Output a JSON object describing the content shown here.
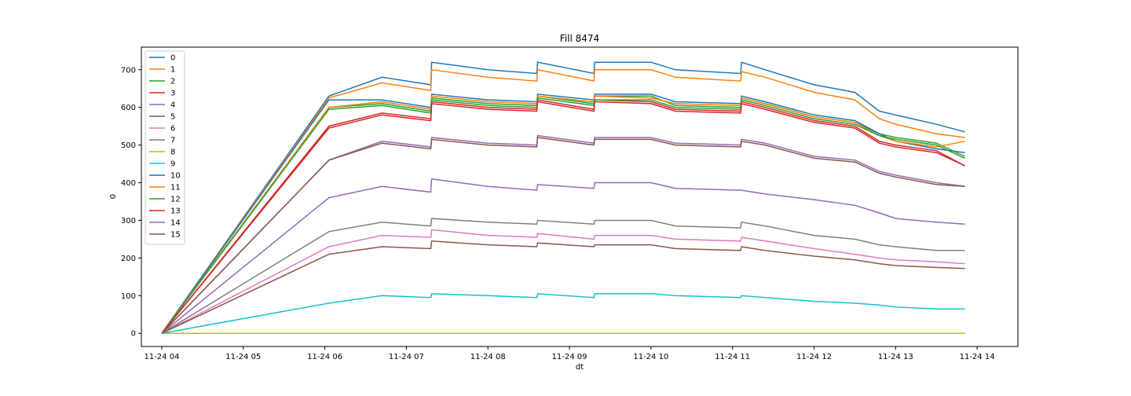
{
  "chart_data": {
    "type": "line",
    "title": "Fill 8474",
    "xlabel": "dt",
    "ylabel": "0",
    "x_ticks": [
      "11-24 04",
      "11-24 05",
      "11-24 06",
      "11-24 07",
      "11-24 08",
      "11-24 09",
      "11-24 10",
      "11-24 11",
      "11-24 12",
      "11-24 13",
      "11-24 14"
    ],
    "y_ticks": [
      "0",
      "100",
      "200",
      "300",
      "400",
      "500",
      "600",
      "700"
    ],
    "xlim_hours": [
      3.75,
      14.5
    ],
    "ylim": [
      -35,
      760
    ],
    "grid": false,
    "legend_position": "top-left",
    "x_hours": [
      4.0,
      6.05,
      6.7,
      7.3,
      7.31,
      8.0,
      8.6,
      8.61,
      9.3,
      9.31,
      10.0,
      10.3,
      11.1,
      11.11,
      11.4,
      12.0,
      12.5,
      12.8,
      13.0,
      13.5,
      13.85
    ],
    "series": [
      {
        "name": "0",
        "color": "#1f77b4",
        "values": [
          0,
          630,
          680,
          660,
          720,
          700,
          690,
          720,
          690,
          720,
          720,
          700,
          690,
          720,
          700,
          660,
          640,
          590,
          580,
          555,
          535
        ]
      },
      {
        "name": "1",
        "color": "#ff7f0e",
        "values": [
          0,
          625,
          665,
          645,
          700,
          680,
          670,
          700,
          670,
          700,
          700,
          680,
          670,
          695,
          680,
          640,
          620,
          570,
          555,
          530,
          520
        ]
      },
      {
        "name": "2",
        "color": "#2ca02c",
        "values": [
          0,
          600,
          610,
          590,
          625,
          610,
          605,
          630,
          610,
          630,
          630,
          605,
          600,
          625,
          610,
          575,
          560,
          530,
          520,
          505,
          470
        ]
      },
      {
        "name": "3",
        "color": "#d62728",
        "values": [
          0,
          550,
          585,
          570,
          615,
          600,
          595,
          620,
          595,
          620,
          615,
          595,
          590,
          615,
          600,
          565,
          550,
          510,
          500,
          485,
          445
        ]
      },
      {
        "name": "4",
        "color": "#9467bd",
        "values": [
          0,
          460,
          510,
          495,
          520,
          505,
          500,
          525,
          505,
          520,
          520,
          505,
          500,
          515,
          505,
          470,
          460,
          430,
          420,
          400,
          390
        ]
      },
      {
        "name": "5",
        "color": "#8c564b",
        "values": [
          0,
          460,
          505,
          490,
          515,
          500,
          495,
          520,
          500,
          515,
          515,
          500,
          495,
          510,
          500,
          465,
          455,
          425,
          415,
          395,
          390
        ]
      },
      {
        "name": "6",
        "color": "#e377c2",
        "values": [
          0,
          230,
          260,
          255,
          275,
          260,
          255,
          265,
          250,
          260,
          260,
          250,
          245,
          255,
          245,
          225,
          210,
          200,
          195,
          190,
          185
        ]
      },
      {
        "name": "7",
        "color": "#7f7f7f",
        "values": [
          0,
          270,
          295,
          285,
          305,
          295,
          290,
          300,
          290,
          300,
          300,
          285,
          280,
          295,
          285,
          260,
          250,
          235,
          230,
          220,
          220
        ]
      },
      {
        "name": "8",
        "color": "#bcbd22",
        "values": [
          0,
          0,
          0,
          0,
          0,
          0,
          0,
          0,
          0,
          0,
          0,
          0,
          0,
          0,
          0,
          0,
          0,
          0,
          0,
          0,
          0
        ]
      },
      {
        "name": "9",
        "color": "#17becf",
        "values": [
          0,
          80,
          100,
          95,
          105,
          100,
          95,
          105,
          95,
          105,
          105,
          100,
          95,
          100,
          95,
          85,
          80,
          75,
          70,
          65,
          65
        ]
      },
      {
        "name": "10",
        "color": "#1f77b4",
        "values": [
          0,
          620,
          620,
          600,
          635,
          620,
          615,
          635,
          620,
          635,
          635,
          615,
          610,
          630,
          615,
          580,
          565,
          530,
          510,
          490,
          480
        ]
      },
      {
        "name": "11",
        "color": "#ff7f0e",
        "values": [
          0,
          600,
          615,
          595,
          630,
          615,
          610,
          630,
          615,
          630,
          625,
          610,
          605,
          625,
          610,
          575,
          560,
          525,
          510,
          495,
          510
        ]
      },
      {
        "name": "12",
        "color": "#2ca02c",
        "values": [
          0,
          595,
          605,
          585,
          620,
          605,
          600,
          625,
          605,
          620,
          620,
          600,
          595,
          620,
          605,
          570,
          555,
          525,
          515,
          500,
          465
        ]
      },
      {
        "name": "13",
        "color": "#d62728",
        "values": [
          0,
          545,
          580,
          565,
          610,
          595,
          590,
          615,
          590,
          615,
          610,
          590,
          585,
          610,
          595,
          560,
          545,
          505,
          495,
          480,
          445
        ]
      },
      {
        "name": "14",
        "color": "#9467bd",
        "values": [
          0,
          360,
          390,
          375,
          410,
          390,
          380,
          395,
          385,
          400,
          400,
          385,
          380,
          380,
          370,
          355,
          340,
          320,
          305,
          295,
          290
        ]
      },
      {
        "name": "15",
        "color": "#8c564b",
        "values": [
          0,
          210,
          230,
          225,
          245,
          235,
          230,
          240,
          230,
          235,
          235,
          225,
          220,
          230,
          220,
          205,
          195,
          185,
          180,
          175,
          172
        ]
      }
    ]
  }
}
